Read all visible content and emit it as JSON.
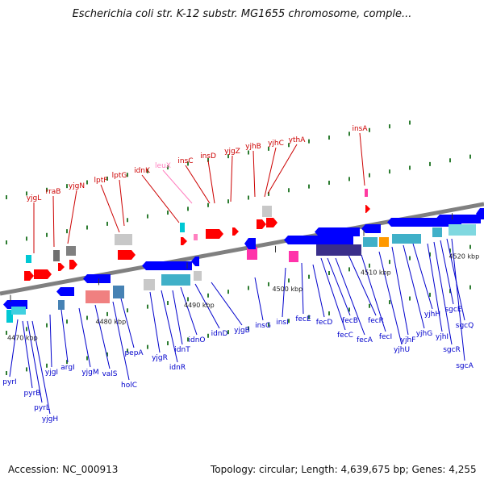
{
  "title": "Escherichia coli str. K-12 substr. MG1655 chromosome, comple...",
  "footer": {
    "accession": "Accession: NC_000913",
    "summary": "Topology: circular; Length: 4,639,675 bp; Genes: 4,255"
  },
  "colors": {
    "top_label": "#cc0000",
    "bottom_label": "#0000cc",
    "leux_label": "#ff7fbf",
    "backbone": "#808080",
    "tick_dot": "#2e7d32"
  },
  "ticks": [
    {
      "label": "4470 kbp",
      "x": 4470
    },
    {
      "label": "4480 kbp",
      "x": 4480
    },
    {
      "label": "4490 kbp",
      "x": 4490
    },
    {
      "label": "4500 kbp",
      "x": 4500
    },
    {
      "label": "4510 kbp",
      "x": 4510
    },
    {
      "label": "4520 kbp",
      "x": 4520
    }
  ],
  "top_genes": [
    "yjgL",
    "rraB",
    "yjgN",
    "lptF",
    "lptG",
    "idnK",
    "leuX",
    "insC",
    "insD",
    "yjgZ",
    "yjhB",
    "yjhC",
    "ythA",
    "insA"
  ],
  "bottom_genes": [
    "pyrI",
    "pyrB",
    "pyrL",
    "yjgH",
    "yjgI",
    "argI",
    "yjgM",
    "valS",
    "holC",
    "pepA",
    "yjgR",
    "idnR",
    "idnT",
    "idnO",
    "idnD",
    "yjgB",
    "insG",
    "insI",
    "fecE",
    "fecD",
    "fecC",
    "fecB",
    "fecA",
    "fecR",
    "fecI",
    "yjhU",
    "yjhF",
    "yjhG",
    "yjhH",
    "yjhI",
    "sgcR",
    "sgcE",
    "sgcQ",
    "sgcA"
  ]
}
